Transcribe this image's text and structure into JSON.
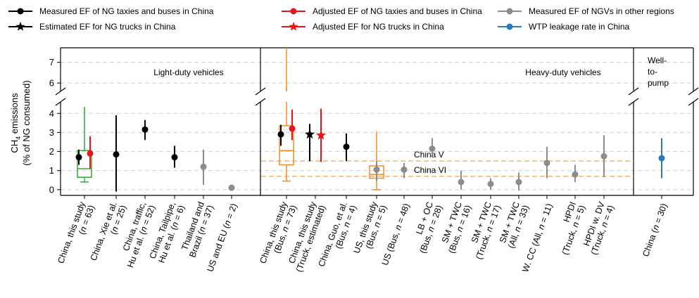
{
  "chart_data": {
    "type": "scatter",
    "legend": [
      {
        "label": "Measured EF of NG taxies and buses in China",
        "color": "#000000",
        "marker": "circle"
      },
      {
        "label": "Adjusted EF of NG taxies and buses in China",
        "color": "#e8141b",
        "marker": "circle"
      },
      {
        "label": "Measured EF of NGVs in other regions",
        "color": "#8c8c8c",
        "marker": "circle"
      },
      {
        "label": "Estimated EF for NG trucks in China",
        "color": "#000000",
        "marker": "star"
      },
      {
        "label": "Adjusted  EF for NG trucks in China",
        "color": "#e8141b",
        "marker": "star"
      },
      {
        "label": "WTP leakage rate in China",
        "color": "#2b7bba",
        "marker": "circle"
      }
    ],
    "ylabel_line1": "CH",
    "ylabel_sub": "4",
    "ylabel_line1_rest": " emissions",
    "ylabel_line2": "(% of NG consumed)",
    "y_ticks_lower": [
      "0",
      "1",
      "2",
      "3",
      "4"
    ],
    "y_ticks_upper": [
      "6",
      "7"
    ],
    "y_lower_range": [
      -0.3,
      4.6
    ],
    "y_upper_range": [
      5.6,
      7.7
    ],
    "panels": [
      "Light-duty vehicles",
      "Heavy-duty vehicles",
      "Well-to-pump"
    ],
    "wtp_label_lines": [
      "Well-",
      "to-",
      "pump"
    ],
    "reference_lines": [
      {
        "label": "China V",
        "value": 1.5
      },
      {
        "label": "China VI",
        "value": 0.7
      }
    ],
    "categories": [
      {
        "label": [
          "China, this study",
          "(n = 63)"
        ],
        "panel": 0
      },
      {
        "label": [
          "China, Xie et al.",
          "(n = 25)"
        ],
        "panel": 0
      },
      {
        "label": [
          "China, traffic,",
          "Hu et al. (n = 52)"
        ],
        "panel": 0
      },
      {
        "label": [
          "China, Tailpipe,",
          "Hu et al. (n = 6)"
        ],
        "panel": 0
      },
      {
        "label": [
          "Thailand and",
          "Brazil (n = 37)"
        ],
        "panel": 0
      },
      {
        "label": [
          "US and EU (n = 2)"
        ],
        "panel": 0
      },
      {
        "label": [
          "China, this study",
          "(Bus, n = 73)"
        ],
        "panel": 1
      },
      {
        "label": [
          "China, this study",
          "(Truck, estimated)"
        ],
        "panel": 1
      },
      {
        "label": [
          "China, Guo, et al.",
          "(Bus, n = 4)"
        ],
        "panel": 1
      },
      {
        "label": [
          "US, this study",
          "(Bus, n = 5)"
        ],
        "panel": 1
      },
      {
        "label": [
          "US (Bus, n = 48)"
        ],
        "panel": 1
      },
      {
        "label": [
          "LB + OC",
          "(Bus, n = 28)"
        ],
        "panel": 1
      },
      {
        "label": [
          "SM + TWC",
          "(Bus, n = 16)"
        ],
        "panel": 1
      },
      {
        "label": [
          "SM + TWC",
          "(Truck, n = 17)"
        ],
        "panel": 1
      },
      {
        "label": [
          "SM + TWC",
          "(All, n = 33)"
        ],
        "panel": 1
      },
      {
        "label": [
          "W. CC (All, n = 11)"
        ],
        "panel": 1
      },
      {
        "label": [
          "HPDI",
          "(Truck, n = 5)"
        ],
        "panel": 1
      },
      {
        "label": [
          "HPDI w. DV",
          "(Truck, n = 4)"
        ],
        "panel": 1
      },
      {
        "label": [
          "China (n = 30)"
        ],
        "panel": 2
      }
    ],
    "boxplots": [
      {
        "category": 0,
        "color": "#3aa53a",
        "q1": 0.65,
        "median": 1.1,
        "q3": 2.05,
        "whisker_low": 0.4,
        "whisker_high": 4.35
      },
      {
        "category": 6,
        "color": "#f28c28",
        "q1": 1.3,
        "median": 2.05,
        "q3": 3.35,
        "whisker_low": 0.45,
        "whisker_high": 7.7
      },
      {
        "category": 9,
        "color": "#f28c28",
        "q1": 0.6,
        "median": 0.8,
        "q3": 1.25,
        "whisker_low": 0.0,
        "whisker_high": 3.05
      }
    ],
    "points": [
      {
        "category": 0,
        "series": "measured_china",
        "value": 1.7,
        "low": 1.3,
        "high": 2.1,
        "offset": -8
      },
      {
        "category": 0,
        "series": "adjusted_china",
        "value": 1.9,
        "low": 1.1,
        "high": 2.8,
        "offset": 8
      },
      {
        "category": 1,
        "series": "measured_china",
        "value": 1.85,
        "low": -0.1,
        "high": 3.9,
        "offset": 0
      },
      {
        "category": 2,
        "series": "measured_china",
        "value": 3.15,
        "low": 2.6,
        "high": 3.65,
        "offset": 0
      },
      {
        "category": 3,
        "series": "measured_china",
        "value": 1.7,
        "low": 1.15,
        "high": 2.3,
        "offset": 0
      },
      {
        "category": 4,
        "series": "other_regions",
        "value": 1.2,
        "low": 0.25,
        "high": 2.1,
        "offset": 0
      },
      {
        "category": 5,
        "series": "other_regions",
        "value": 0.1,
        "low": 0.1,
        "high": 0.1,
        "offset": 0
      },
      {
        "category": 6,
        "series": "measured_china",
        "value": 2.9,
        "low": 2.3,
        "high": 3.4,
        "offset": -8
      },
      {
        "category": 6,
        "series": "adjusted_china",
        "value": 3.2,
        "low": 2.6,
        "high": 4.2,
        "offset": 8
      },
      {
        "category": 7,
        "series": "estimated_truck",
        "value": 2.9,
        "low": 1.5,
        "high": 3.45,
        "offset": -8
      },
      {
        "category": 7,
        "series": "adjusted_truck",
        "value": 2.85,
        "low": 1.45,
        "high": 4.25,
        "offset": 8
      },
      {
        "category": 8,
        "series": "measured_china",
        "value": 2.25,
        "low": 1.5,
        "high": 2.95,
        "offset": 0
      },
      {
        "category": 9,
        "series": "other_regions",
        "value": 1.05,
        "low": 0.45,
        "high": 1.5,
        "offset": 0
      },
      {
        "category": 10,
        "series": "other_regions",
        "value": 1.05,
        "low": 0.6,
        "high": 1.4,
        "offset": 0
      },
      {
        "category": 11,
        "series": "other_regions",
        "value": 2.15,
        "low": 1.8,
        "high": 2.7,
        "offset": 0
      },
      {
        "category": 12,
        "series": "other_regions",
        "value": 0.4,
        "low": 0.0,
        "high": 1.0,
        "offset": 0
      },
      {
        "category": 13,
        "series": "other_regions",
        "value": 0.3,
        "low": 0.0,
        "high": 0.6,
        "offset": 0
      },
      {
        "category": 14,
        "series": "other_regions",
        "value": 0.4,
        "low": -0.05,
        "high": 0.9,
        "offset": 0
      },
      {
        "category": 15,
        "series": "other_regions",
        "value": 1.4,
        "low": 0.6,
        "high": 2.25,
        "offset": 0
      },
      {
        "category": 16,
        "series": "other_regions",
        "value": 0.8,
        "low": 0.4,
        "high": 1.3,
        "offset": 0
      },
      {
        "category": 17,
        "series": "other_regions",
        "value": 1.75,
        "low": 0.65,
        "high": 2.85,
        "offset": 0
      },
      {
        "category": 18,
        "series": "wtp",
        "value": 1.65,
        "low": 0.6,
        "high": 2.7,
        "offset": 0
      }
    ],
    "series_colors": {
      "measured_china": "#000000",
      "adjusted_china": "#e8141b",
      "other_regions": "#8c8c8c",
      "estimated_truck": "#000000",
      "adjusted_truck": "#e8141b",
      "wtp": "#2b7bba"
    },
    "series_markers": {
      "measured_china": "circle",
      "adjusted_china": "circle",
      "other_regions": "circle",
      "estimated_truck": "star",
      "adjusted_truck": "star",
      "wtp": "circle"
    },
    "grid": true,
    "reference_color": "#f6b26b",
    "reference_text_color": "#e98a2e"
  }
}
